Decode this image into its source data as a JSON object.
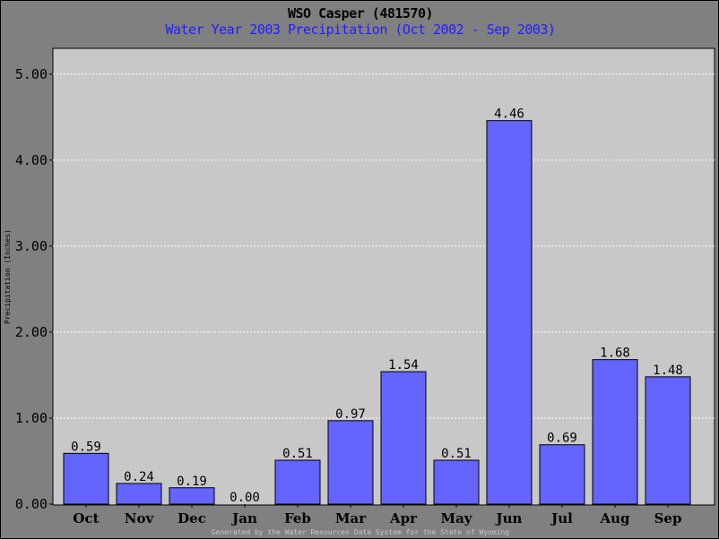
{
  "header": {
    "title": "WSO Casper (481570)",
    "subtitle": "Water Year 2003 Precipitation (Oct 2002 - Sep 2003)"
  },
  "footer": {
    "credit": "Generated by the Water Resources Data System for the State of Wyoming"
  },
  "colors": {
    "bar": "#6464ff",
    "plot_background": "#c8c8c8",
    "frame_background": "#808080",
    "subtitle": "#1f1fff"
  },
  "chart_data": {
    "type": "bar",
    "title": "WSO Casper (481570)",
    "subtitle": "Water Year 2003 Precipitation (Oct 2002 - Sep 2003)",
    "xlabel": "",
    "ylabel": "Precipitation (Inches)",
    "ylim": [
      0,
      5.3
    ],
    "yticks": [
      0,
      1,
      2,
      3,
      4,
      5
    ],
    "ytick_labels": [
      "0.00",
      "1.00",
      "2.00",
      "3.00",
      "4.00",
      "5.00"
    ],
    "grid": true,
    "categories": [
      "Oct",
      "Nov",
      "Dec",
      "Jan",
      "Feb",
      "Mar",
      "Apr",
      "May",
      "Jun",
      "Jul",
      "Aug",
      "Sep"
    ],
    "values": [
      0.59,
      0.24,
      0.19,
      0.0,
      0.51,
      0.97,
      1.54,
      0.51,
      4.46,
      0.69,
      1.68,
      1.48
    ],
    "value_labels": [
      "0.59",
      "0.24",
      "0.19",
      "0.00",
      "0.51",
      "0.97",
      "1.54",
      "0.51",
      "4.46",
      "0.69",
      "1.68",
      "1.48"
    ]
  }
}
